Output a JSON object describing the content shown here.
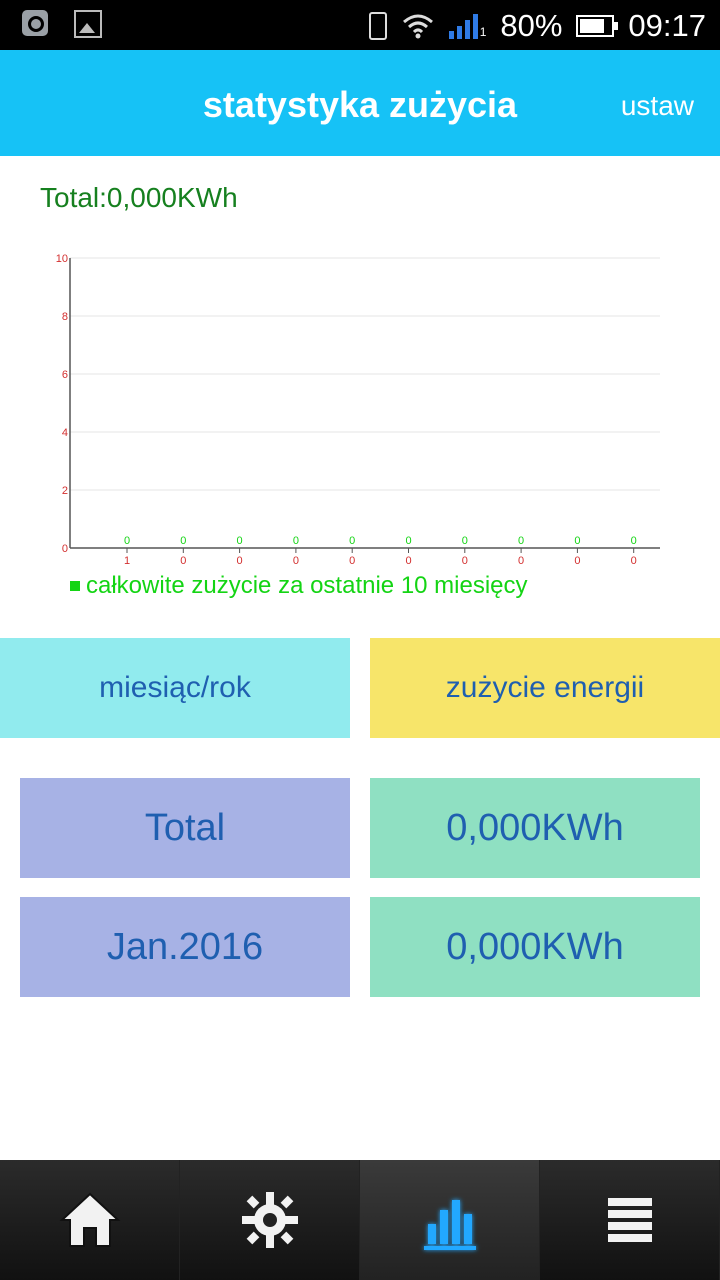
{
  "status_bar": {
    "battery_percent": "80%",
    "time": "09:17",
    "signal_subscript": "1"
  },
  "header": {
    "title": "statystyka zużycia",
    "action_label": "ustaw"
  },
  "summary": {
    "total_text": "Total:0,000KWh"
  },
  "chart_data": {
    "type": "bar",
    "title": "",
    "xlabel": "",
    "ylabel": "",
    "ylim": [
      0,
      10
    ],
    "yticks": [
      "0",
      "2",
      "4",
      "6",
      "8",
      "10"
    ],
    "categories": [
      "1",
      "0",
      "0",
      "0",
      "0",
      "0",
      "0",
      "0",
      "0",
      "0"
    ],
    "series": [
      {
        "name": "całkowite zużycie za ostatnie 10 miesięcy",
        "values": [
          0,
          0,
          0,
          0,
          0,
          0,
          0,
          0,
          0,
          0
        ]
      }
    ],
    "data_labels": [
      "0",
      "0",
      "0",
      "0",
      "0",
      "0",
      "0",
      "0",
      "0",
      "0"
    ],
    "grid": true,
    "legend_position": "bottom-left",
    "colors": {
      "series": "#14d414",
      "axis_labels": "#d32f2f",
      "grid": "#e6e6e6",
      "axis": "#555555"
    }
  },
  "legend": {
    "label": "całkowite zużycie za ostatnie 10 miesięcy"
  },
  "table": {
    "header_month": "miesiąc/rok",
    "header_energy": "zużycie energii",
    "rows": [
      {
        "month": "Total",
        "energy": "0,000KWh"
      },
      {
        "month": "Jan.2016",
        "energy": "0,000KWh"
      }
    ]
  },
  "bottom_nav": {
    "items": [
      {
        "icon": "home-icon",
        "active": false
      },
      {
        "icon": "gear-icon",
        "active": false
      },
      {
        "icon": "chart-icon",
        "active": true
      },
      {
        "icon": "menu-icon",
        "active": false
      }
    ]
  }
}
